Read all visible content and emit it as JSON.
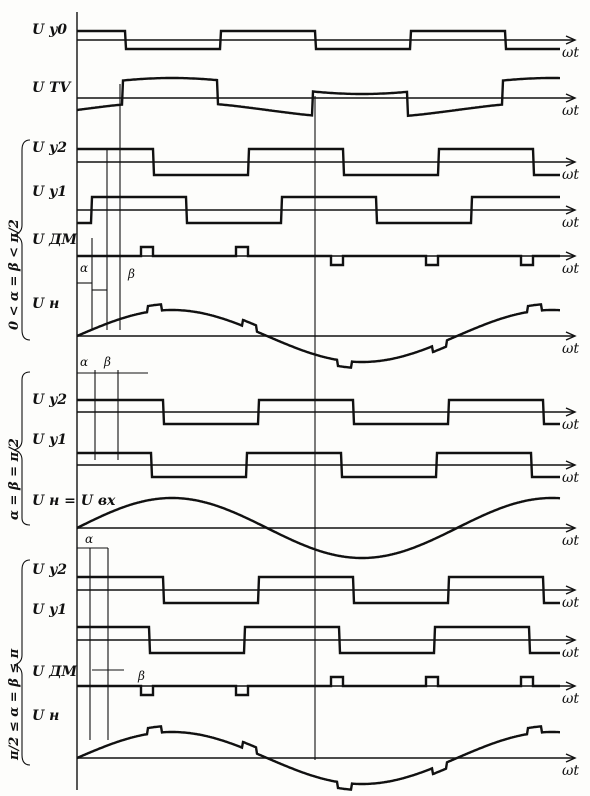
{
  "axis_label": "ωt",
  "traces": [
    {
      "id": "uy0",
      "label": "U y0"
    },
    {
      "id": "utv",
      "label": "U TV"
    },
    {
      "id": "a-uy2",
      "label": "U y2"
    },
    {
      "id": "a-uy1",
      "label": "U y1"
    },
    {
      "id": "a-udm",
      "label": "U ДМ"
    },
    {
      "id": "a-un",
      "label": "U н"
    },
    {
      "id": "b-uy2",
      "label": "U y2"
    },
    {
      "id": "b-uy1",
      "label": "U y1"
    },
    {
      "id": "b-un",
      "label": "U н = U вх"
    },
    {
      "id": "c-uy2",
      "label": "U y2"
    },
    {
      "id": "c-uy1",
      "label": "U y1"
    },
    {
      "id": "c-udm",
      "label": "U ДМ"
    },
    {
      "id": "c-un",
      "label": "U н"
    }
  ],
  "groups": [
    {
      "id": "case-a",
      "condition": "0 < α = β < π/2"
    },
    {
      "id": "case-b",
      "condition": "α = β = π/2"
    },
    {
      "id": "case-c",
      "condition": "π/2 ≤ α = β ≤ π"
    }
  ],
  "angles": {
    "alpha": "α",
    "beta": "β"
  }
}
